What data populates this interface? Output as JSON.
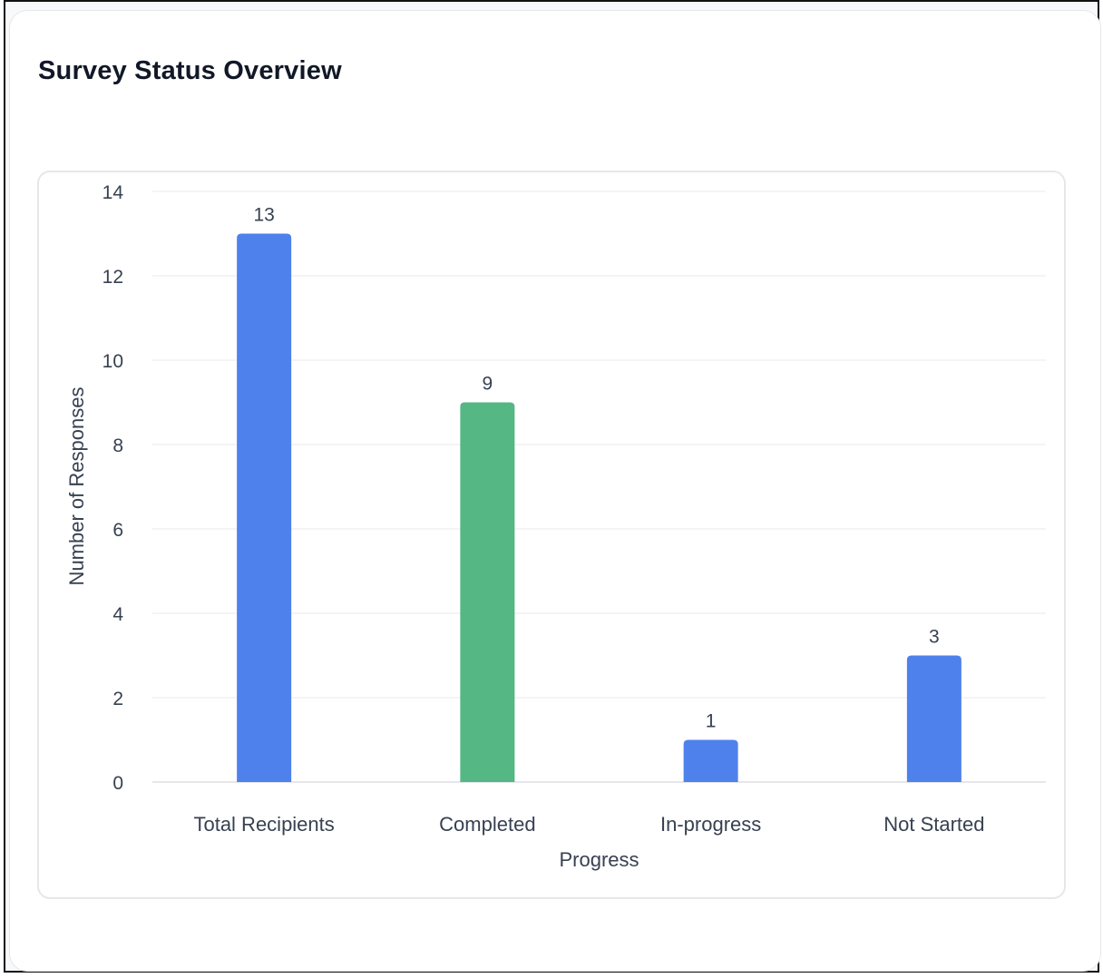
{
  "title": "Survey Status Overview",
  "chart_data": {
    "type": "bar",
    "title": "Survey Status Overview",
    "categories": [
      "Total Recipients",
      "Completed",
      "In-progress",
      "Not Started"
    ],
    "values": [
      13,
      9,
      1,
      3
    ],
    "colors": [
      "#4f81ec",
      "#54b784",
      "#4f81ec",
      "#4f81ec"
    ],
    "data_labels": [
      "13",
      "9",
      "1",
      "3"
    ],
    "xlabel": "Progress",
    "ylabel": "Number of Responses",
    "ylim": [
      0,
      14
    ],
    "yticks": [
      0,
      2,
      4,
      6,
      8,
      10,
      12,
      14
    ],
    "grid": true,
    "legend": "none"
  }
}
